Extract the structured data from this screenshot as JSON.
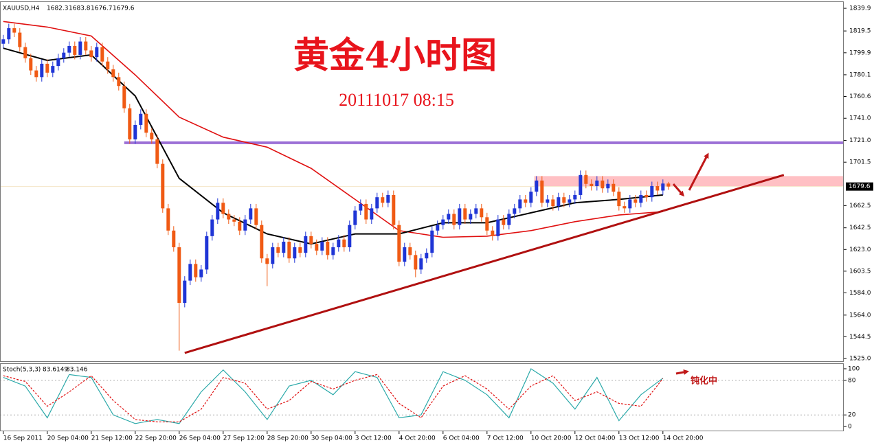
{
  "chart_data": [
    {
      "type": "candlestick",
      "title": "黄金4小时图",
      "subtitle": "20111017 08:15",
      "symbol": "XAUUSD,H4",
      "up_color": "#1f35d6",
      "down_color": "#f05a14",
      "open": [
        1808,
        1812,
        1822,
        1818,
        1805,
        1795,
        1784,
        1778,
        1790,
        1782,
        1788,
        1795,
        1800,
        1806,
        1798,
        1810,
        1802,
        1796,
        1805,
        1792,
        1785,
        1778,
        1770,
        1750,
        1722,
        1735,
        1745,
        1728,
        1722,
        1700,
        1660,
        1640,
        1625,
        1575,
        1595,
        1610,
        1598,
        1605,
        1635,
        1650,
        1665,
        1655,
        1650,
        1648,
        1640,
        1650,
        1660,
        1645,
        1615,
        1610,
        1625,
        1620,
        1630,
        1615,
        1625,
        1620,
        1635,
        1628,
        1622,
        1630,
        1618,
        1625,
        1632,
        1625,
        1645,
        1658,
        1664,
        1650,
        1660,
        1670,
        1665,
        1672,
        1645,
        1612,
        1625,
        1618,
        1605,
        1615,
        1620,
        1640,
        1645,
        1650,
        1655,
        1645,
        1660,
        1650,
        1655,
        1660,
        1652,
        1640,
        1635,
        1650,
        1645,
        1655,
        1660,
        1668,
        1665,
        1675,
        1685,
        1665,
        1668,
        1662,
        1670,
        1665,
        1668,
        1672,
        1690,
        1682,
        1680,
        1685,
        1678,
        1682,
        1675,
        1662,
        1660,
        1668,
        1665,
        1672,
        1670,
        1680,
        1676,
        1682.3
      ],
      "high": [
        1816,
        1826,
        1826,
        1822,
        1809,
        1799,
        1788,
        1794,
        1794,
        1792,
        1799,
        1804,
        1810,
        1810,
        1814,
        1814,
        1806,
        1809,
        1809,
        1796,
        1789,
        1782,
        1774,
        1754,
        1739,
        1749,
        1749,
        1732,
        1726,
        1704,
        1664,
        1644,
        1629,
        1599,
        1614,
        1614,
        1609,
        1639,
        1654,
        1669,
        1669,
        1659,
        1654,
        1652,
        1654,
        1664,
        1664,
        1649,
        1619,
        1629,
        1629,
        1634,
        1634,
        1629,
        1629,
        1639,
        1639,
        1632,
        1634,
        1634,
        1629,
        1636,
        1636,
        1649,
        1662,
        1668,
        1668,
        1664,
        1674,
        1674,
        1676,
        1676,
        1649,
        1629,
        1629,
        1622,
        1619,
        1624,
        1644,
        1649,
        1654,
        1659,
        1659,
        1664,
        1664,
        1659,
        1664,
        1664,
        1656,
        1644,
        1654,
        1654,
        1659,
        1664,
        1672,
        1672,
        1679,
        1689,
        1689,
        1672,
        1672,
        1674,
        1674,
        1672,
        1676,
        1694,
        1694,
        1686,
        1689,
        1689,
        1686,
        1686,
        1679,
        1666,
        1672,
        1672,
        1676,
        1676,
        1684,
        1684,
        1686,
        1683.8
      ],
      "low": [
        1804,
        1808,
        1814,
        1801,
        1791,
        1780,
        1774,
        1774,
        1778,
        1778,
        1784,
        1791,
        1796,
        1794,
        1794,
        1798,
        1792,
        1792,
        1788,
        1781,
        1774,
        1766,
        1746,
        1718,
        1718,
        1731,
        1724,
        1718,
        1696,
        1656,
        1636,
        1621,
        1532,
        1571,
        1591,
        1594,
        1594,
        1601,
        1631,
        1646,
        1651,
        1646,
        1644,
        1636,
        1636,
        1646,
        1641,
        1611,
        1590,
        1606,
        1616,
        1616,
        1611,
        1611,
        1616,
        1616,
        1624,
        1618,
        1618,
        1614,
        1614,
        1621,
        1621,
        1621,
        1641,
        1654,
        1646,
        1646,
        1656,
        1661,
        1661,
        1641,
        1608,
        1608,
        1614,
        1598,
        1601,
        1611,
        1616,
        1636,
        1641,
        1646,
        1641,
        1641,
        1646,
        1646,
        1651,
        1648,
        1636,
        1631,
        1631,
        1641,
        1641,
        1651,
        1656,
        1661,
        1661,
        1671,
        1661,
        1661,
        1658,
        1658,
        1661,
        1661,
        1664,
        1668,
        1678,
        1676,
        1676,
        1674,
        1674,
        1671,
        1658,
        1656,
        1656,
        1661,
        1661,
        1666,
        1666,
        1672,
        1672,
        1676.7
      ],
      "close": [
        1812,
        1822,
        1818,
        1805,
        1795,
        1784,
        1778,
        1790,
        1782,
        1788,
        1795,
        1800,
        1806,
        1798,
        1810,
        1802,
        1796,
        1805,
        1792,
        1785,
        1778,
        1770,
        1750,
        1722,
        1735,
        1745,
        1728,
        1722,
        1700,
        1660,
        1640,
        1625,
        1575,
        1595,
        1610,
        1598,
        1605,
        1635,
        1650,
        1665,
        1655,
        1650,
        1648,
        1640,
        1650,
        1660,
        1645,
        1615,
        1610,
        1625,
        1620,
        1630,
        1615,
        1625,
        1620,
        1635,
        1628,
        1622,
        1630,
        1618,
        1625,
        1632,
        1625,
        1645,
        1658,
        1664,
        1650,
        1660,
        1670,
        1665,
        1672,
        1645,
        1612,
        1625,
        1618,
        1605,
        1615,
        1620,
        1640,
        1645,
        1650,
        1655,
        1645,
        1660,
        1650,
        1655,
        1660,
        1652,
        1640,
        1635,
        1650,
        1645,
        1655,
        1660,
        1668,
        1665,
        1675,
        1685,
        1665,
        1668,
        1662,
        1670,
        1665,
        1668,
        1672,
        1690,
        1682,
        1680,
        1685,
        1678,
        1682,
        1675,
        1662,
        1660,
        1668,
        1665,
        1672,
        1670,
        1680,
        1676,
        1682.3,
        1679.6
      ],
      "series": [
        {
          "color": "#e01010",
          "x": [
            0,
            8,
            16,
            24,
            32,
            40,
            48,
            56,
            64,
            72,
            80,
            88,
            96,
            104,
            112,
            120
          ],
          "values": [
            1828,
            1823,
            1815,
            1780,
            1742,
            1724,
            1715,
            1696,
            1668,
            1640,
            1634,
            1635,
            1640,
            1648,
            1654,
            1657
          ]
        },
        {
          "color": "#000000",
          "x": [
            0,
            8,
            16,
            24,
            32,
            40,
            48,
            56,
            64,
            72,
            80,
            88,
            96,
            104,
            112,
            120
          ],
          "values": [
            1804,
            1793,
            1798,
            1761,
            1687,
            1656,
            1637,
            1628,
            1637,
            1637,
            1647,
            1647,
            1656,
            1665,
            1668,
            1672
          ]
        }
      ],
      "resistance": {
        "value": 1719,
        "from": 22,
        "color": "#9b6fd6"
      },
      "zone": {
        "low": 1680,
        "high": 1689,
        "from": 96.6,
        "color": "#ffc0c4"
      },
      "trendline": {
        "x": [
          33,
          142
        ],
        "values": [
          1530,
          1690
        ],
        "color": "#b01010"
      },
      "xlim": [
        -0.6,
        152.9
      ],
      "ylim": [
        1521.9,
        1845.5
      ],
      "yticks": [
        1839.9,
        1819.5,
        1799.9,
        1780.1,
        1760.6,
        {
          "value": 1741,
          "label": "1741.0"
        },
        {
          "value": 1721,
          "label": "1721.0"
        },
        1701.5,
        1662.5,
        1642.5,
        {
          "value": 1623,
          "label": "1623.0"
        },
        1603.5,
        {
          "value": 1584,
          "label": "1584.0"
        },
        {
          "value": 1564,
          "label": "1564.0"
        },
        1544.5,
        {
          "value": 1525,
          "label": "1525.0"
        }
      ]
    },
    {
      "type": "line",
      "label": "Stoch(5,3,3)",
      "annotation": "钝化中",
      "x": [
        0,
        4,
        8,
        12,
        16,
        20,
        24,
        28,
        32,
        36,
        40,
        44,
        48,
        52,
        56,
        60,
        64,
        68,
        72,
        76,
        80,
        84,
        88,
        92,
        96,
        100,
        104,
        108,
        112,
        116,
        120
      ],
      "series": [
        {
          "color": "#2aa9a9",
          "dash": false,
          "values": [
            85,
            70,
            15,
            90,
            85,
            20,
            5,
            12,
            5,
            60,
            98,
            60,
            12,
            70,
            80,
            55,
            95,
            85,
            15,
            20,
            95,
            80,
            55,
            15,
            100,
            75,
            30,
            85,
            10,
            55,
            83.6149
          ]
        },
        {
          "color": "#e01010",
          "dash": true,
          "values": [
            88,
            78,
            35,
            60,
            88,
            45,
            12,
            8,
            8,
            30,
            85,
            75,
            30,
            45,
            78,
            65,
            80,
            90,
            40,
            15,
            70,
            88,
            65,
            30,
            70,
            88,
            45,
            60,
            40,
            35,
            83.146
          ]
        }
      ],
      "ylim": [
        -8.3,
        108.3
      ],
      "yticks": [
        100,
        80,
        20,
        0
      ],
      "levels": [
        80,
        20
      ],
      "xlim": [
        -0.6,
        152.9
      ],
      "xticks": [
        {
          "value": 0,
          "label": "16 Sep 2011"
        },
        {
          "value": 8,
          "label": "20 Sep 04:00"
        },
        {
          "value": 16,
          "label": "21 Sep 12:00"
        },
        {
          "value": 24,
          "label": "22 Sep 20:00"
        },
        {
          "value": 32,
          "label": "26 Sep 04:00"
        },
        {
          "value": 40,
          "label": "27 Sep 12:00"
        },
        {
          "value": 48,
          "label": "28 Sep 20:00"
        },
        {
          "value": 56,
          "label": "30 Sep 04:00"
        },
        {
          "value": 64,
          "label": "3 Oct 12:00"
        },
        {
          "value": 72,
          "label": "4 Oct 20:00"
        },
        {
          "value": 80,
          "label": "6 Oct 04:00"
        },
        {
          "value": 88,
          "label": "7 Oct 12:00"
        },
        {
          "value": 96,
          "label": "10 Oct 20:00"
        },
        {
          "value": 104,
          "label": "12 Oct 04:00"
        },
        {
          "value": 112,
          "label": "13 Oct 12:00"
        },
        {
          "value": 120,
          "label": "14 Oct 20:00"
        }
      ]
    }
  ]
}
